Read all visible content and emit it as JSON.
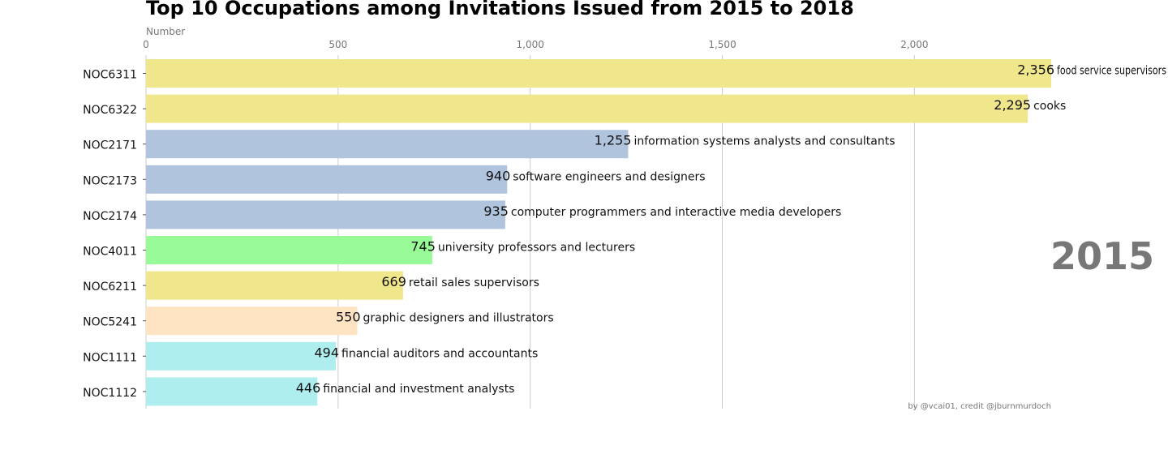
{
  "chart_data": {
    "type": "bar",
    "orientation": "horizontal",
    "title": "Top 10 Occupations among Invitations Issued from 2015 to 2018",
    "xlabel": "Number",
    "ylabel": "",
    "xlim": [
      0,
      2356
    ],
    "x_ticks": [
      0,
      500,
      1000,
      1500,
      2000
    ],
    "x_tick_labels": [
      "0",
      "500",
      "1,000",
      "1,500",
      "2,000"
    ],
    "grid": true,
    "year_label": "2015",
    "credit": "by @vcai01, credit @jburnmurdoch",
    "bars": [
      {
        "category": "NOC6311",
        "value": 2356,
        "value_label": "2,356",
        "description": "food service supervisors",
        "color": "#F0E68C"
      },
      {
        "category": "NOC6322",
        "value": 2295,
        "value_label": "2,295",
        "description": "cooks",
        "color": "#F0E68C"
      },
      {
        "category": "NOC2171",
        "value": 1255,
        "value_label": "1,255",
        "description": "information systems analysts and consultants",
        "color": "#B0C4DE"
      },
      {
        "category": "NOC2173",
        "value": 940,
        "value_label": "940",
        "description": "software engineers and designers",
        "color": "#B0C4DE"
      },
      {
        "category": "NOC2174",
        "value": 935,
        "value_label": "935",
        "description": "computer programmers and interactive media developers",
        "color": "#B0C4DE"
      },
      {
        "category": "NOC4011",
        "value": 745,
        "value_label": "745",
        "description": "university professors and lecturers",
        "color": "#98FB98"
      },
      {
        "category": "NOC6211",
        "value": 669,
        "value_label": "669",
        "description": "retail sales supervisors",
        "color": "#F0E68C"
      },
      {
        "category": "NOC5241",
        "value": 550,
        "value_label": "550",
        "description": "graphic designers and illustrators",
        "color": "#FFE4C4"
      },
      {
        "category": "NOC1111",
        "value": 494,
        "value_label": "494",
        "description": "financial auditors and accountants",
        "color": "#AFEEEE"
      },
      {
        "category": "NOC1112",
        "value": 446,
        "value_label": "446",
        "description": "financial and investment analysts",
        "color": "#AFEEEE"
      }
    ]
  }
}
